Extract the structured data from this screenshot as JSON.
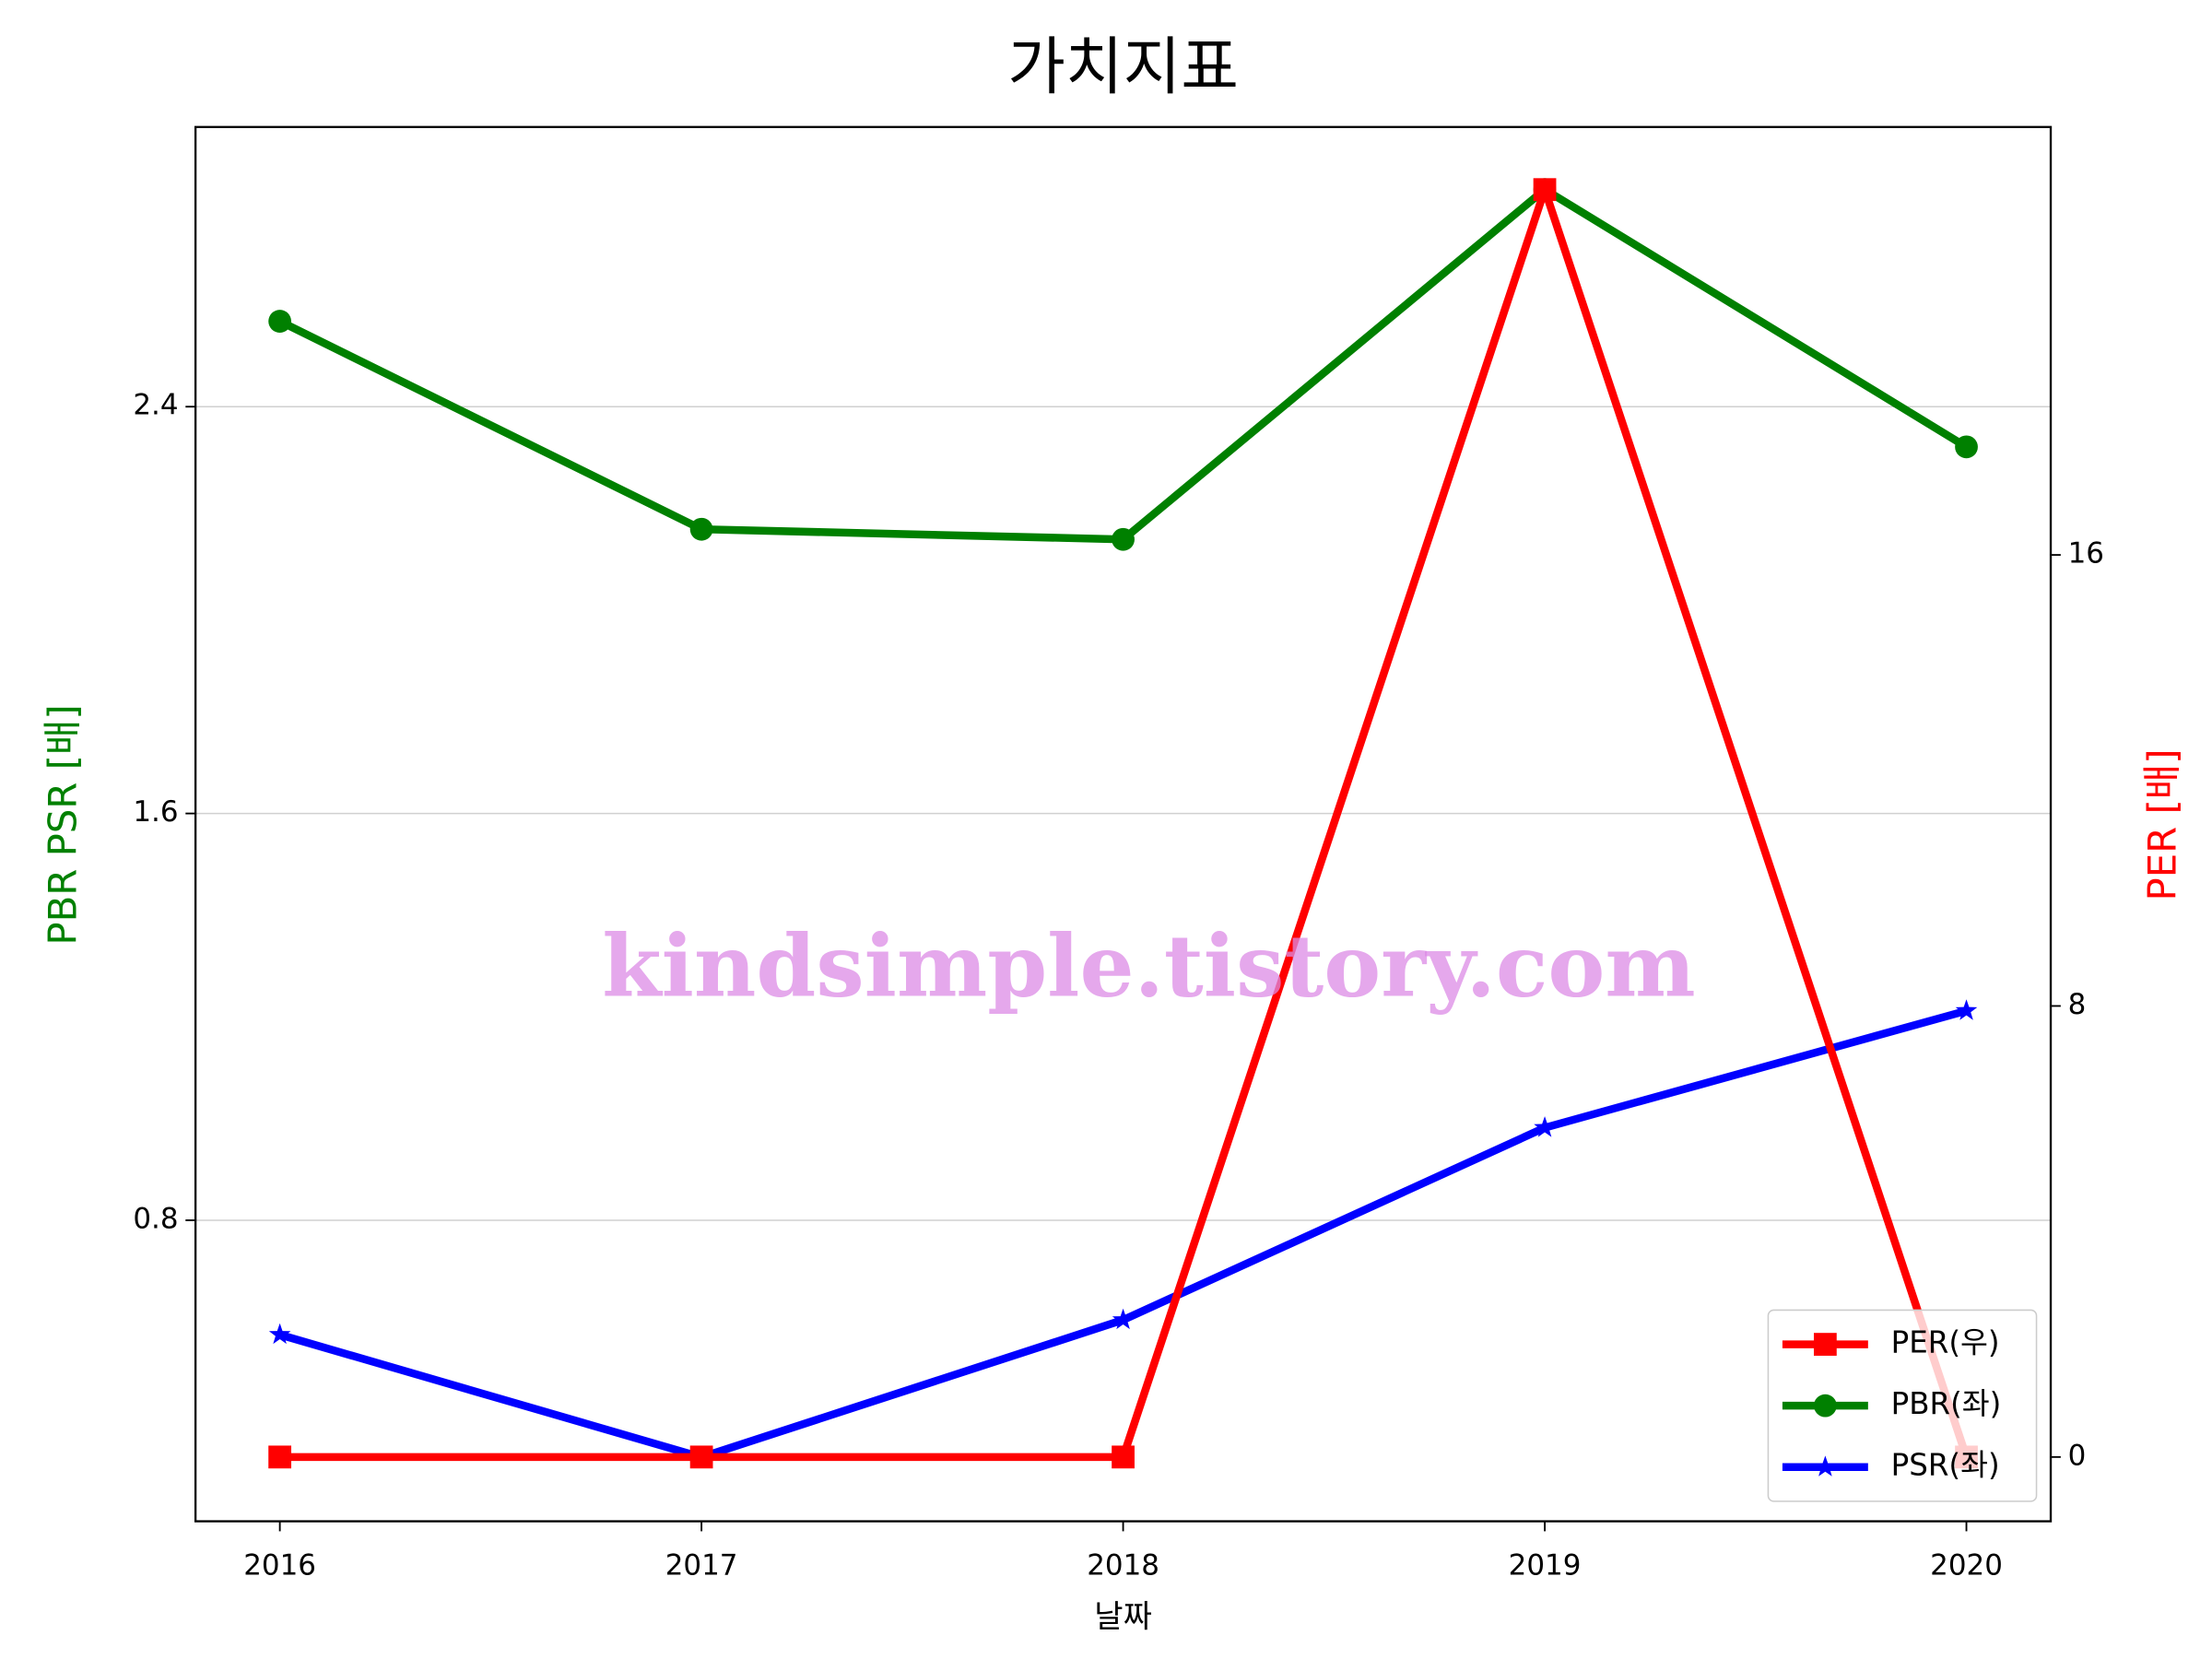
{
  "chart_data": {
    "type": "line",
    "title": "가치지표",
    "xlabel": "날짜",
    "ylabel": "PBR PSR [배]",
    "y2label": "PER [배]",
    "ylabel_color": "#008000",
    "y2label_color": "#ff0000",
    "watermark": "kindsimple.tistory.com",
    "x": [
      2016,
      2017,
      2018,
      2019,
      2020
    ],
    "xlim": [
      2015.8,
      2020.2
    ],
    "xticks": [
      2016,
      2017,
      2018,
      2019,
      2020
    ],
    "ylim": [
      0.208,
      2.95
    ],
    "yticks": [
      0.8,
      1.6,
      2.4
    ],
    "y2lim": [
      -1.14,
      23.59
    ],
    "y2ticks": [
      0,
      8,
      16
    ],
    "grid": true,
    "legend": "lower right",
    "series": [
      {
        "name": "PER(우)",
        "color": "#ff0000",
        "marker": "square",
        "axis": "y2",
        "values": [
          0,
          0,
          0,
          22.48,
          0
        ]
      },
      {
        "name": "PBR(좌)",
        "color": "#008000",
        "marker": "circle",
        "values": [
          2.568,
          2.159,
          2.139,
          2.827,
          2.321
        ]
      },
      {
        "name": "PSR(좌)",
        "color": "#0000ff",
        "marker": "star",
        "values": [
          0.575,
          0.334,
          0.604,
          0.982,
          1.212
        ]
      }
    ]
  }
}
